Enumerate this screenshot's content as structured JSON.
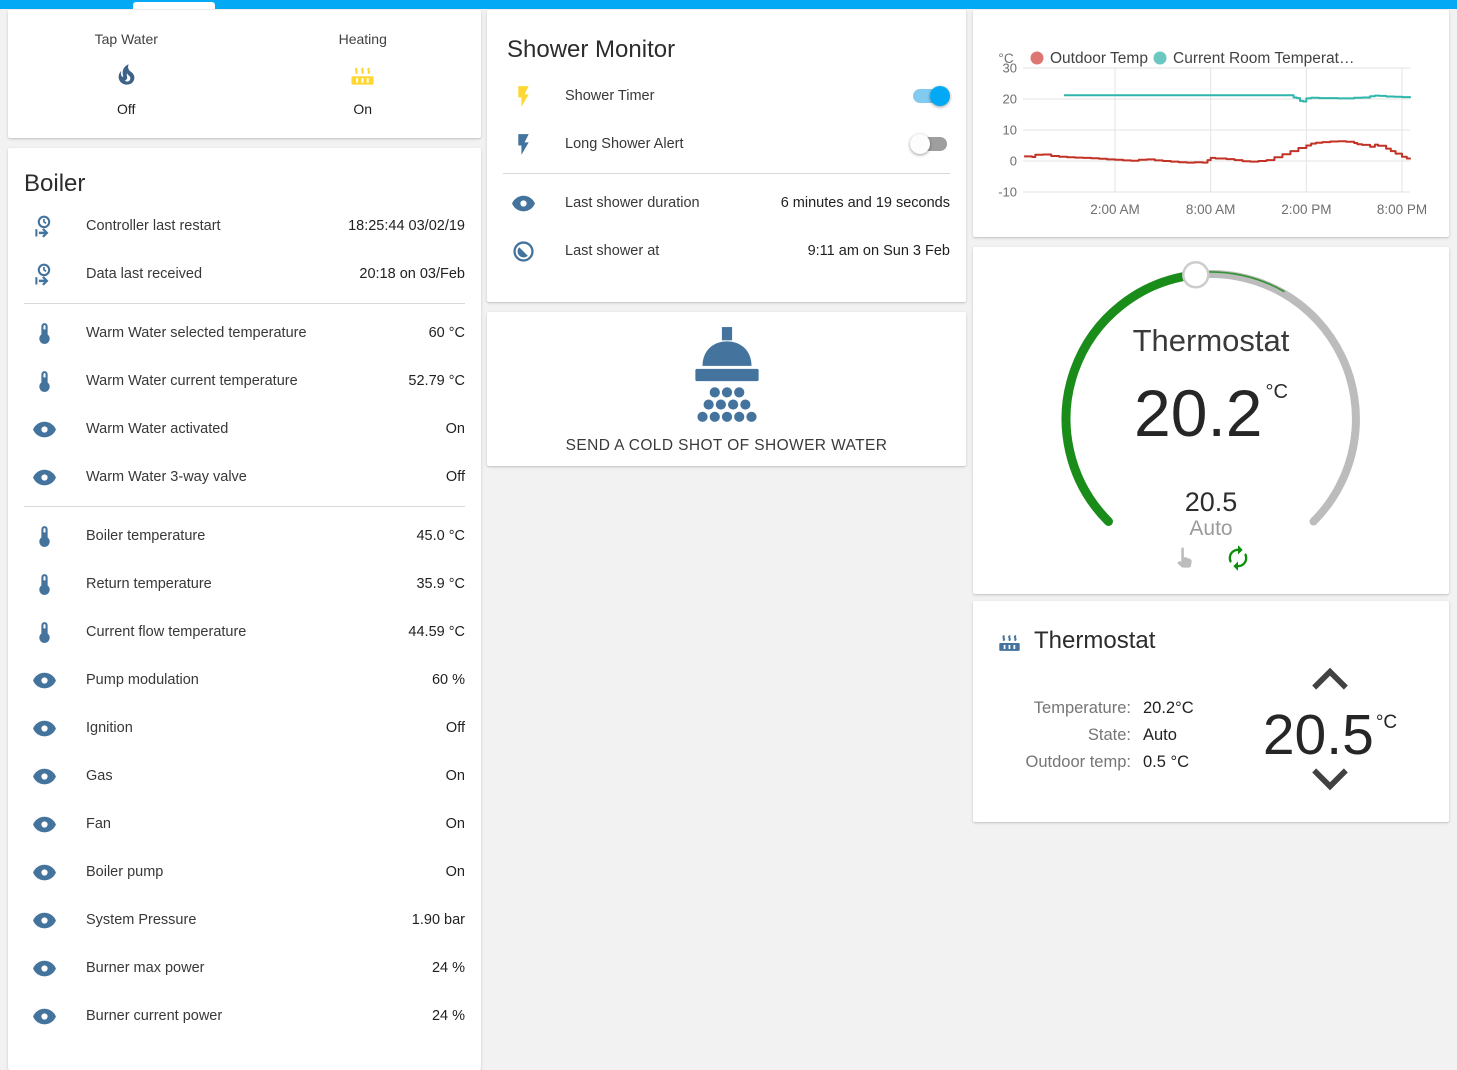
{
  "topbar": {
    "color": "#03a9f4"
  },
  "glance": {
    "items": [
      {
        "label": "Tap Water",
        "state": "Off",
        "icon": "fire",
        "icon_color": "#3e6287"
      },
      {
        "label": "Heating",
        "state": "On",
        "icon": "radiator",
        "icon_color": "#fdd835"
      }
    ]
  },
  "boiler": {
    "title": "Boiler",
    "rows": [
      {
        "icon": "clock-out",
        "label": "Controller last restart",
        "value": "18:25:44 03/02/19"
      },
      {
        "icon": "clock-out",
        "label": "Data last received",
        "value": "20:18 on 03/Feb",
        "divider_after": true
      },
      {
        "icon": "thermometer",
        "label": "Warm Water selected temperature",
        "value": "60 °C"
      },
      {
        "icon": "thermometer",
        "label": "Warm Water current temperature",
        "value": "52.79 °C"
      },
      {
        "icon": "eye",
        "label": "Warm Water activated",
        "value": "On"
      },
      {
        "icon": "eye",
        "label": "Warm Water 3-way valve",
        "value": "Off",
        "divider_after": true
      },
      {
        "icon": "thermometer",
        "label": "Boiler temperature",
        "value": "45.0 °C"
      },
      {
        "icon": "thermometer",
        "label": "Return temperature",
        "value": "35.9 °C"
      },
      {
        "icon": "thermometer",
        "label": "Current flow temperature",
        "value": "44.59 °C"
      },
      {
        "icon": "eye",
        "label": "Pump modulation",
        "value": "60 %"
      },
      {
        "icon": "eye",
        "label": "Ignition",
        "value": "Off"
      },
      {
        "icon": "eye",
        "label": "Gas",
        "value": "On"
      },
      {
        "icon": "eye",
        "label": "Fan",
        "value": "On"
      },
      {
        "icon": "eye",
        "label": "Boiler pump",
        "value": "On"
      },
      {
        "icon": "eye",
        "label": "System Pressure",
        "value": "1.90 bar"
      },
      {
        "icon": "eye",
        "label": "Burner max power",
        "value": "24 %"
      },
      {
        "icon": "eye",
        "label": "Burner current power",
        "value": "24 %"
      }
    ]
  },
  "shower_monitor": {
    "title": "Shower Monitor",
    "toggle_rows": [
      {
        "icon": "flash",
        "icon_color": "#fdd835",
        "label": "Shower Timer",
        "state": "on"
      },
      {
        "icon": "flash",
        "icon_color": "#44739e",
        "label": "Long Shower Alert",
        "state": "off"
      }
    ],
    "info_rows": [
      {
        "icon": "eye",
        "label": "Last shower duration",
        "value": "6 minutes and 19 seconds"
      },
      {
        "icon": "clock-half",
        "label": "Last shower at",
        "value": "9:11 am on Sun 3 Feb"
      }
    ]
  },
  "shower_button": {
    "label": "SEND A COLD SHOT OF SHOWER WATER"
  },
  "chart_data": {
    "type": "line",
    "title": "",
    "unit_label": "°C",
    "ylabel": "",
    "xlabel": "",
    "ylim": [
      -12,
      32
    ],
    "xlim": [
      20.2,
      44.5
    ],
    "grid": true,
    "legend_position": "top",
    "y_ticks": [
      30,
      20,
      10,
      0,
      -10
    ],
    "x_ticks": [
      {
        "t": 26,
        "label": "2:00 AM"
      },
      {
        "t": 32,
        "label": "8:00 AM"
      },
      {
        "t": 38,
        "label": "2:00 PM"
      },
      {
        "t": 44,
        "label": "8:00 PM"
      }
    ],
    "series": [
      {
        "name": "Outdoor Temp",
        "color": "#c23326",
        "dot_color": "#dd7672",
        "points": [
          [
            20.3,
            1.5
          ],
          [
            20.8,
            1.3
          ],
          [
            21.0,
            2.0
          ],
          [
            21.5,
            2.1
          ],
          [
            22.0,
            1.6
          ],
          [
            22.5,
            1.4
          ],
          [
            23.0,
            1.2
          ],
          [
            23.5,
            1.1
          ],
          [
            24.0,
            1.0
          ],
          [
            24.5,
            0.9
          ],
          [
            25.0,
            0.7
          ],
          [
            25.5,
            0.5
          ],
          [
            26.0,
            0.4
          ],
          [
            26.5,
            0.2
          ],
          [
            27.0,
            0.1
          ],
          [
            27.5,
            0.4
          ],
          [
            28.0,
            0.5
          ],
          [
            28.5,
            0.2
          ],
          [
            29.0,
            0.0
          ],
          [
            29.5,
            -0.2
          ],
          [
            30.0,
            -0.4
          ],
          [
            30.5,
            -0.5
          ],
          [
            31.0,
            -0.4
          ],
          [
            31.5,
            -0.5
          ],
          [
            31.8,
            0.3
          ],
          [
            32.0,
            1.0
          ],
          [
            32.3,
            0.8
          ],
          [
            33.0,
            0.6
          ],
          [
            33.5,
            0.3
          ],
          [
            34.0,
            -0.1
          ],
          [
            34.5,
            -0.2
          ],
          [
            35.0,
            0.0
          ],
          [
            35.5,
            0.3
          ],
          [
            36.0,
            1.2
          ],
          [
            36.5,
            2.2
          ],
          [
            37.0,
            3.2
          ],
          [
            37.5,
            4.2
          ],
          [
            38.0,
            5.0
          ],
          [
            38.3,
            5.6
          ],
          [
            38.6,
            5.9
          ],
          [
            39.0,
            6.1
          ],
          [
            39.5,
            6.3
          ],
          [
            40.0,
            6.4
          ],
          [
            40.5,
            6.2
          ],
          [
            41.0,
            5.8
          ],
          [
            41.2,
            5.4
          ],
          [
            41.5,
            5.2
          ],
          [
            42.0,
            4.6
          ],
          [
            42.3,
            5.3
          ],
          [
            42.5,
            4.9
          ],
          [
            43.0,
            4.0
          ],
          [
            43.3,
            3.2
          ],
          [
            43.6,
            2.4
          ],
          [
            44.0,
            1.4
          ],
          [
            44.3,
            0.8
          ],
          [
            44.5,
            0.5
          ]
        ]
      },
      {
        "name": "Current Room Temperat…",
        "color": "#2fb6ab",
        "dot_color": "#6ac7c1",
        "points": [
          [
            22.8,
            21.2
          ],
          [
            30.0,
            21.2
          ],
          [
            36.0,
            21.2
          ],
          [
            37.0,
            21.2
          ],
          [
            37.2,
            20.5
          ],
          [
            37.4,
            20.3
          ],
          [
            37.6,
            19.4
          ],
          [
            37.8,
            19.2
          ],
          [
            38.0,
            20.2
          ],
          [
            38.3,
            20.4
          ],
          [
            38.8,
            20.3
          ],
          [
            39.5,
            20.3
          ],
          [
            40.0,
            20.2
          ],
          [
            40.5,
            20.2
          ],
          [
            41.0,
            20.4
          ],
          [
            41.5,
            20.5
          ],
          [
            42.0,
            20.9
          ],
          [
            42.3,
            21.1
          ],
          [
            42.6,
            21.0
          ],
          [
            43.0,
            20.8
          ],
          [
            43.5,
            20.7
          ],
          [
            44.0,
            20.6
          ],
          [
            44.5,
            20.3
          ]
        ]
      }
    ]
  },
  "thermostat_dial": {
    "title": "Thermostat",
    "current": "20.2",
    "unit": "°C",
    "target": "20.5",
    "mode": "Auto",
    "arc_color": "#1a8c1a"
  },
  "thermostat_info": {
    "title": "Thermostat",
    "rows": [
      {
        "label": "Temperature:",
        "value": "20.2°C"
      },
      {
        "label": "State:",
        "value": "Auto"
      },
      {
        "label": "Outdoor temp:",
        "value": "0.5 °C"
      }
    ],
    "setpoint": "20.5",
    "unit": "°C"
  }
}
